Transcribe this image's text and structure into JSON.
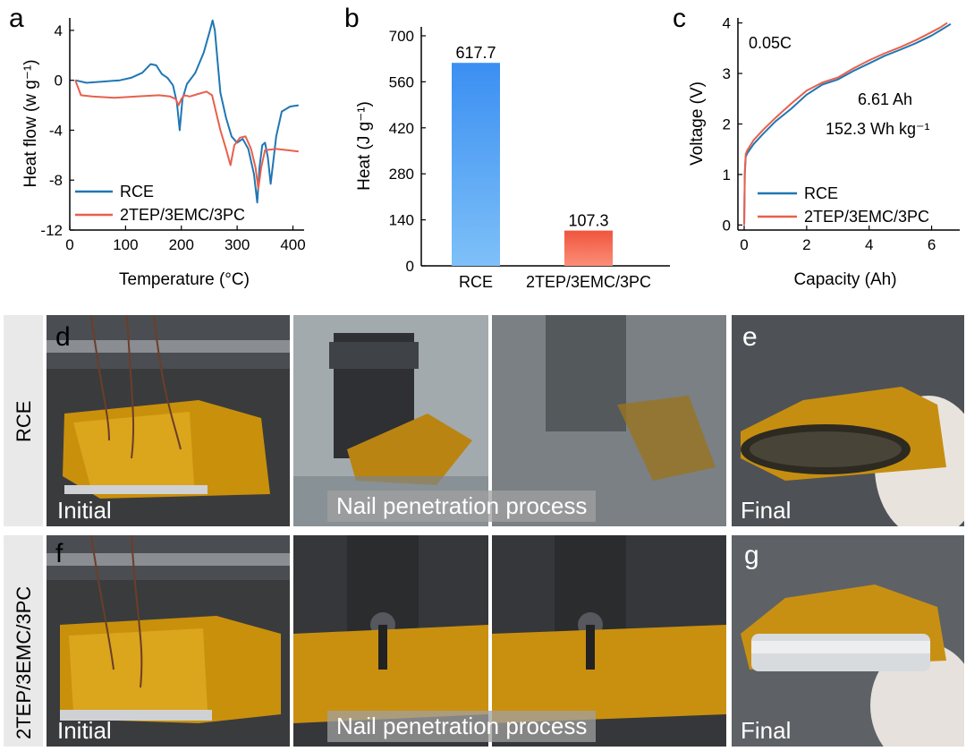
{
  "panels": {
    "a": "a",
    "b": "b",
    "c": "c",
    "d": "d",
    "e": "e",
    "f": "f",
    "g": "g"
  },
  "chart_data": [
    {
      "type": "line",
      "ylabel": "Heat flow (w g⁻¹)",
      "xlabel": "Temperature (°C)",
      "xlim": [
        0,
        420
      ],
      "ylim": [
        -12,
        5
      ],
      "xticks": [
        0,
        100,
        200,
        300,
        400
      ],
      "yticks": [
        4,
        0,
        -4,
        -8,
        -12
      ],
      "legend_position": "bottom-left",
      "series": [
        {
          "name": "RCE",
          "color": "#1f77b4",
          "x": [
            10,
            30,
            60,
            90,
            110,
            130,
            145,
            155,
            165,
            175,
            185,
            192,
            197,
            202,
            210,
            225,
            240,
            250,
            256,
            260,
            265,
            270,
            280,
            290,
            300,
            310,
            320,
            330,
            336,
            340,
            345,
            350,
            355,
            360,
            370,
            380,
            395,
            410
          ],
          "y": [
            0,
            -0.2,
            -0.1,
            0,
            0.2,
            0.6,
            1.3,
            1.2,
            0.5,
            0.2,
            -0.4,
            -1.8,
            -4.0,
            -1.5,
            -0.3,
            0.6,
            2.2,
            3.8,
            4.8,
            4.0,
            1.5,
            -1.0,
            -3.0,
            -4.5,
            -5.0,
            -4.7,
            -5.5,
            -7.5,
            -9.8,
            -7.0,
            -5.2,
            -5.0,
            -6.2,
            -8.3,
            -4.5,
            -2.5,
            -2.1,
            -2.0
          ]
        },
        {
          "name": "2TEP/3EMC/3PC",
          "color": "#e8604c",
          "x": [
            10,
            20,
            40,
            80,
            120,
            160,
            180,
            190,
            195,
            200,
            205,
            215,
            230,
            245,
            255,
            262,
            270,
            280,
            288,
            295,
            305,
            315,
            325,
            333,
            338,
            343,
            350,
            370,
            390,
            410
          ],
          "y": [
            0,
            -1.2,
            -1.3,
            -1.4,
            -1.3,
            -1.2,
            -1.3,
            -1.5,
            -2.0,
            -1.5,
            -1.2,
            -1.3,
            -1.1,
            -0.9,
            -1.2,
            -2.5,
            -4.0,
            -5.5,
            -6.8,
            -5.2,
            -4.6,
            -4.5,
            -5.5,
            -7.0,
            -8.7,
            -7.0,
            -5.6,
            -5.5,
            -5.6,
            -5.7
          ]
        }
      ]
    },
    {
      "type": "bar",
      "ylabel": "Heat (J g⁻¹)",
      "categories": [
        "RCE",
        "2TEP/3EMC/3PC"
      ],
      "values": [
        617.7,
        107.3
      ],
      "data_labels": [
        "617.7",
        "107.3"
      ],
      "ylim": [
        0,
        700
      ],
      "yticks": [
        0,
        140,
        280,
        420,
        560,
        700
      ],
      "colors": [
        "#4a9ff5",
        "#f06a50"
      ]
    },
    {
      "type": "line",
      "ylabel": "Voltage (V)",
      "xlabel": "Capacity (Ah)",
      "xlim": [
        -0.2,
        6.9
      ],
      "ylim": [
        -0.1,
        4.1
      ],
      "xticks": [
        0,
        2,
        4,
        6
      ],
      "yticks": [
        0,
        1,
        2,
        3,
        4
      ],
      "annotations": [
        "0.05C",
        "6.61 Ah",
        "152.3 Wh kg⁻¹"
      ],
      "legend_position": "bottom-right",
      "series": [
        {
          "name": "RCE",
          "color": "#1f77b4",
          "x": [
            0,
            0.02,
            0.05,
            0.1,
            0.3,
            0.6,
            1,
            1.5,
            2,
            2.5,
            3,
            3.5,
            4,
            4.5,
            5,
            5.5,
            6,
            6.3,
            6.61
          ],
          "y": [
            0,
            1.0,
            1.35,
            1.42,
            1.6,
            1.8,
            2.05,
            2.3,
            2.58,
            2.78,
            2.88,
            3.05,
            3.2,
            3.35,
            3.47,
            3.6,
            3.75,
            3.86,
            3.98
          ]
        },
        {
          "name": "2TEP/3EMC/3PC",
          "color": "#e8604c",
          "x": [
            0,
            0.02,
            0.05,
            0.1,
            0.3,
            0.6,
            1,
            1.5,
            2,
            2.5,
            3,
            3.5,
            4,
            4.5,
            5,
            5.5,
            6,
            6.3,
            6.5
          ],
          "y": [
            0,
            1.05,
            1.4,
            1.48,
            1.68,
            1.88,
            2.12,
            2.4,
            2.66,
            2.82,
            2.92,
            3.1,
            3.26,
            3.4,
            3.52,
            3.66,
            3.82,
            3.92,
            4.0
          ]
        }
      ]
    }
  ],
  "photos": {
    "row_d_label": "RCE",
    "row_f_label": "2TEP/3EMC/3PC",
    "initial_caption": "Initial",
    "process_caption": "Nail penetration process",
    "final_caption": "Final"
  }
}
